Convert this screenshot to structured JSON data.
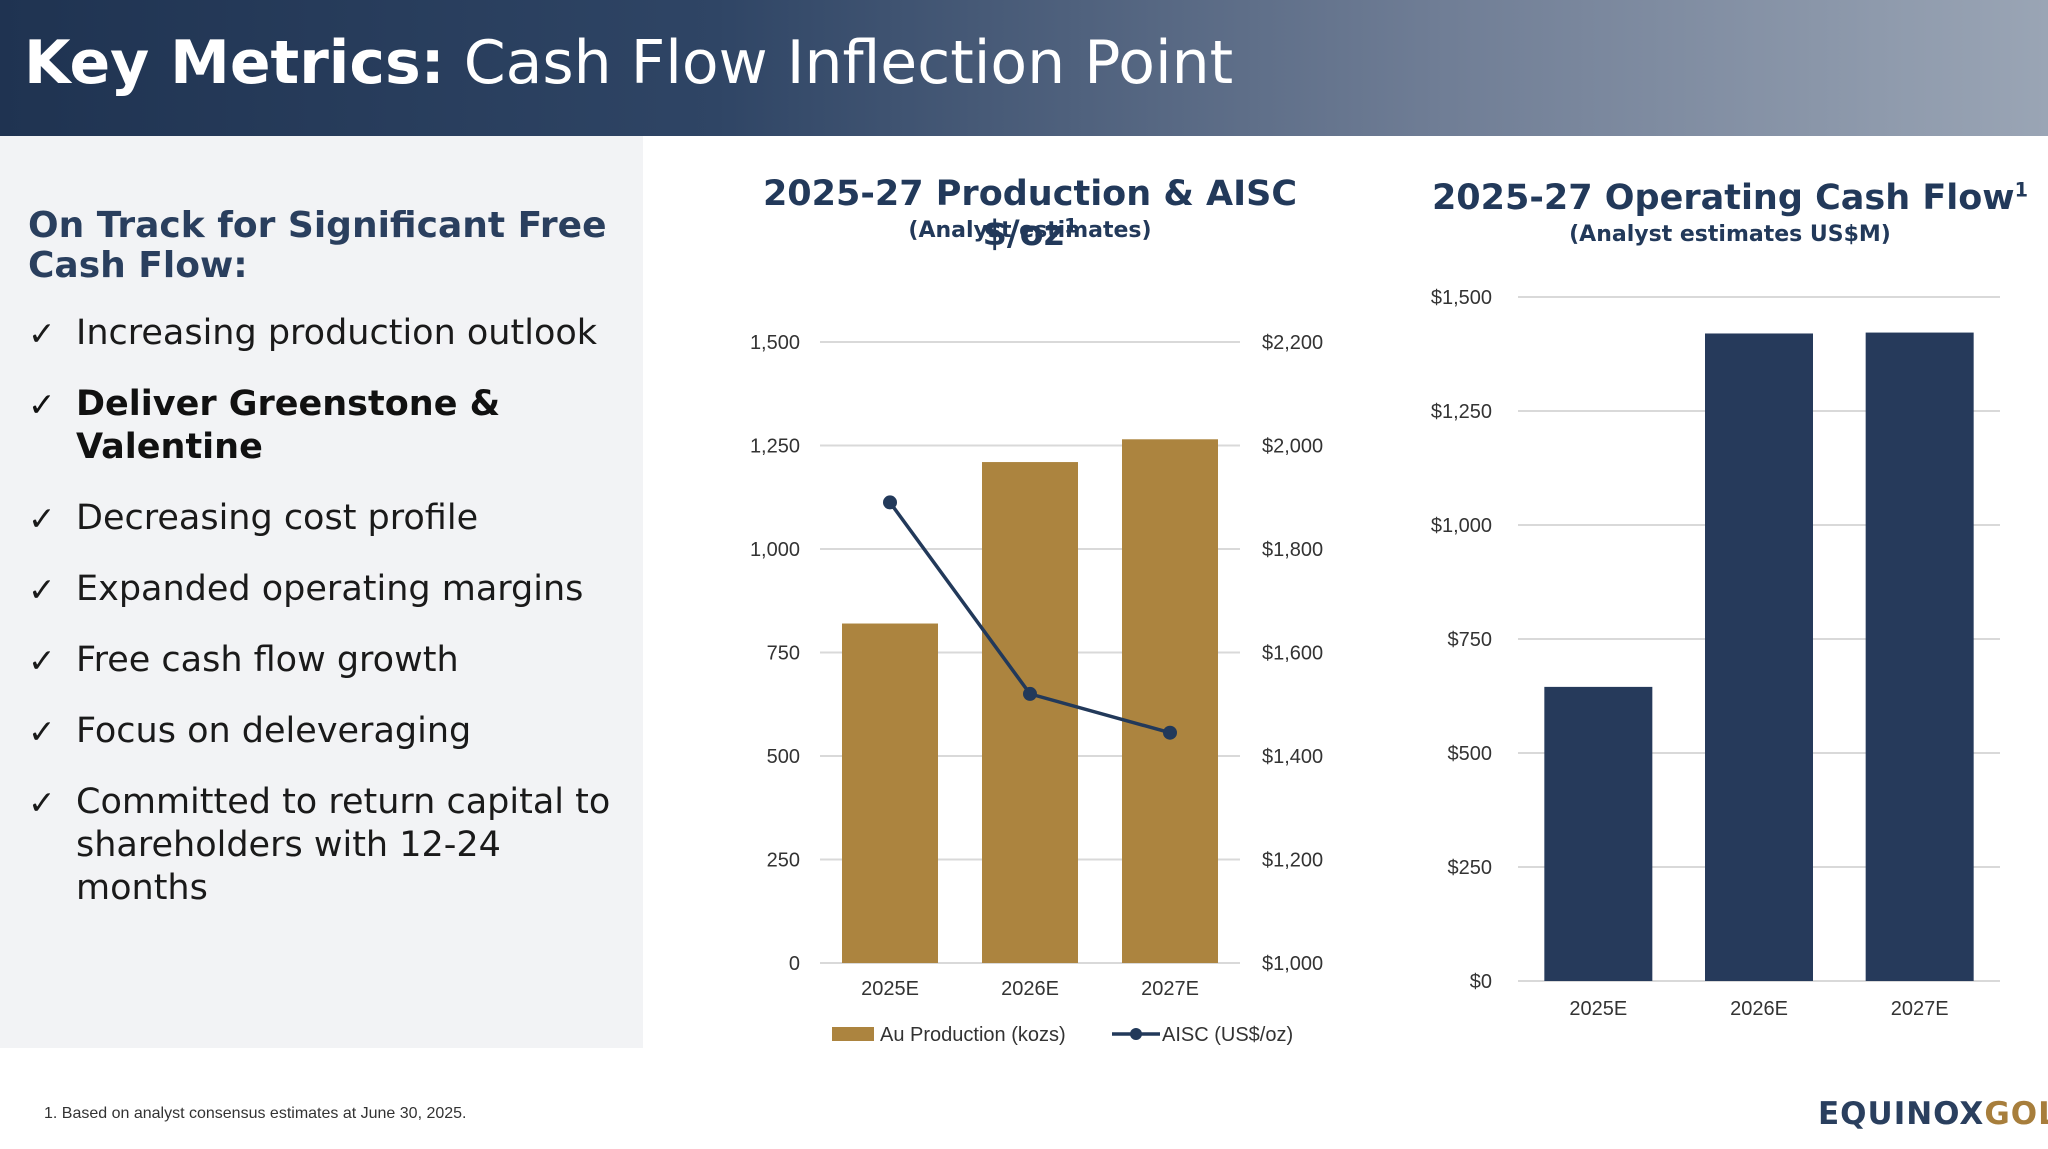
{
  "header": {
    "title_bold": "Key Metrics:",
    "title_rest": " Cash Flow Inflection Point"
  },
  "left": {
    "heading": "On Track for Significant Free Cash Flow:",
    "bullets": [
      {
        "text": "Increasing production outlook",
        "bold": false
      },
      {
        "text": "Deliver Greenstone & Valentine",
        "bold": true
      },
      {
        "text": "Decreasing cost profile",
        "bold": false
      },
      {
        "text": "Expanded operating margins",
        "bold": false
      },
      {
        "text": "Free cash flow growth",
        "bold": false
      },
      {
        "text": "Focus on deleveraging",
        "bold": false
      },
      {
        "text": "Committed to return capital to shareholders with 12-24 months",
        "bold": false
      }
    ],
    "check_glyph": "✓"
  },
  "chart1": {
    "title": "2025-27 Production & AISC $/oz",
    "title_sup": "1",
    "subtitle": "(Analyst estimates)"
  },
  "chart2": {
    "title": "2025-27 Operating Cash Flow",
    "title_sup": "1",
    "subtitle": "(Analyst estimates US$M)"
  },
  "chart_data": [
    {
      "type": "bar",
      "categories": [
        "2025E",
        "2026E",
        "2027E"
      ],
      "series": [
        {
          "name": "Au Production (kozs)",
          "type": "bar",
          "axis": "left",
          "values": [
            820,
            1210,
            1265
          ],
          "color": "#ac843f"
        },
        {
          "name": "AISC (US$/oz)",
          "type": "line",
          "axis": "right",
          "values": [
            1890,
            1520,
            1445
          ],
          "color": "#22395a"
        }
      ],
      "y_left": {
        "min": 0,
        "max": 1500,
        "ticks": [
          0,
          250,
          500,
          750,
          1000,
          1250,
          1500
        ],
        "tick_labels": [
          "0",
          "250",
          "500",
          "750",
          "1,000",
          "1,250",
          "1,500"
        ]
      },
      "y_right": {
        "min": 1000,
        "max": 2200,
        "ticks": [
          1000,
          1200,
          1400,
          1600,
          1800,
          2000,
          2200
        ],
        "tick_labels": [
          "$1,000",
          "$1,200",
          "$1,400",
          "$1,600",
          "$1,800",
          "$2,000",
          "$2,200"
        ]
      },
      "grid": true,
      "legend": "bottom"
    },
    {
      "type": "bar",
      "categories": [
        "2025E",
        "2026E",
        "2027E"
      ],
      "series": [
        {
          "name": "Operating Cash Flow",
          "values": [
            645,
            1420,
            1422
          ],
          "color": "#263a5b"
        }
      ],
      "y": {
        "min": 0,
        "max": 1500,
        "ticks": [
          0,
          250,
          500,
          750,
          1000,
          1250,
          1500
        ],
        "tick_labels": [
          "$0",
          "$250",
          "$500",
          "$750",
          "$1,000",
          "$1,250",
          "$1,500"
        ]
      },
      "grid": true,
      "legend": "none"
    }
  ],
  "footer": {
    "footnote": "1. Based on analyst consensus estimates at June 30, 2025.",
    "logo_part1": "EQUINOX",
    "logo_part2": "GOLD"
  }
}
